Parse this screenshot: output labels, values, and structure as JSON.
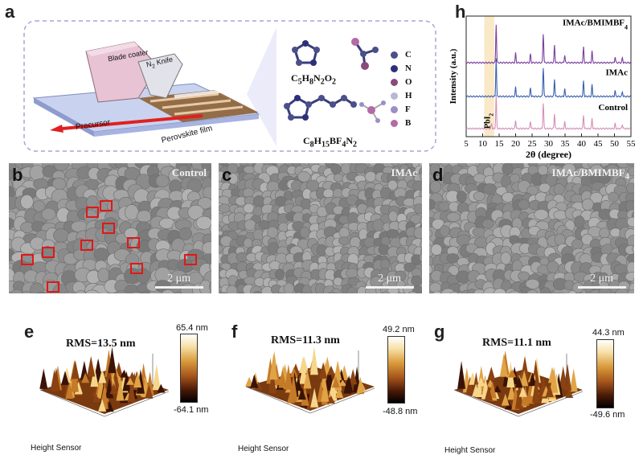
{
  "panel_labels": {
    "a": "a",
    "b": "b",
    "c": "c",
    "d": "d",
    "e": "e",
    "f": "f",
    "g": "g",
    "h": "h"
  },
  "schematic": {
    "blade_coater": "Blade coater",
    "n2_knife": "N",
    "n2_sub": "2",
    "n2_rest": " Knife",
    "precursor": "Precursor",
    "perovskite_film": "Perovskite film",
    "formula1_html": "C<sub>5</sub>H<sub>8</sub>N<sub>2</sub>O<sub>2</sub>",
    "formula2_html": "C<sub>8</sub>H<sub>15</sub>BF<sub>4</sub>N<sub>2</sub>",
    "legend": [
      {
        "symbol": "C",
        "color": "#4b4f8a"
      },
      {
        "symbol": "N",
        "color": "#2d2f7a"
      },
      {
        "symbol": "O",
        "color": "#8a4a7a"
      },
      {
        "symbol": "H",
        "color": "#b8b8d6"
      },
      {
        "symbol": "F",
        "color": "#9a8fc6"
      },
      {
        "symbol": "B",
        "color": "#b36aa6"
      }
    ]
  },
  "sem": [
    {
      "tag": "Control",
      "scale": "2 μm"
    },
    {
      "tag": "IMAc",
      "scale": "2 μm"
    },
    {
      "tag_html": "IMAc/BMIMBF<sub>4</sub>",
      "scale": "2 μm"
    }
  ],
  "afm": [
    {
      "rms": "RMS=13.5 nm",
      "max": "65.4 nm",
      "min": "-64.1 nm",
      "height_sensor": "Height Sensor"
    },
    {
      "rms": "RMS=11.3 nm",
      "max": "49.2 nm",
      "min": "-48.8 nm",
      "height_sensor": "Height Sensor"
    },
    {
      "rms": "RMS=11.1 nm",
      "max": "44.3 nm",
      "min": "-49.6 nm",
      "height_sensor": "Height Sensor"
    }
  ],
  "chart_data": {
    "type": "line",
    "xlabel": "2θ (degree)",
    "ylabel": "Intensity (a.u.)",
    "xlim": [
      5,
      55
    ],
    "x_ticks": [
      "5",
      "10",
      "15",
      "20",
      "25",
      "30",
      "35",
      "40",
      "45",
      "50",
      "55"
    ],
    "annotation": "PbI",
    "annotation_sub": "2",
    "series": [
      {
        "name_html": "IMAc/BMIMBF<sub>4</sub>",
        "color": "#7b3fa0",
        "peaks": [
          [
            14.1,
            1.0
          ],
          [
            20.0,
            0.25
          ],
          [
            24.5,
            0.22
          ],
          [
            28.4,
            0.75
          ],
          [
            31.8,
            0.45
          ],
          [
            34.9,
            0.2
          ],
          [
            40.6,
            0.4
          ],
          [
            43.2,
            0.3
          ],
          [
            50.2,
            0.15
          ],
          [
            52.4,
            0.12
          ]
        ]
      },
      {
        "name": "IMAc",
        "color": "#3a5fb0",
        "peaks": [
          [
            14.1,
            1.0
          ],
          [
            20.0,
            0.25
          ],
          [
            24.5,
            0.22
          ],
          [
            28.4,
            0.75
          ],
          [
            31.8,
            0.45
          ],
          [
            34.9,
            0.2
          ],
          [
            40.6,
            0.4
          ],
          [
            43.2,
            0.3
          ],
          [
            50.2,
            0.15
          ],
          [
            52.4,
            0.12
          ]
        ]
      },
      {
        "name": "Control",
        "color": "#d590b8",
        "peaks": [
          [
            12.7,
            0.15
          ],
          [
            14.1,
            1.0
          ],
          [
            20.0,
            0.25
          ],
          [
            24.5,
            0.22
          ],
          [
            28.4,
            0.75
          ],
          [
            31.8,
            0.45
          ],
          [
            34.9,
            0.2
          ],
          [
            40.6,
            0.4
          ],
          [
            43.2,
            0.3
          ],
          [
            50.2,
            0.15
          ],
          [
            52.4,
            0.12
          ]
        ]
      }
    ]
  }
}
